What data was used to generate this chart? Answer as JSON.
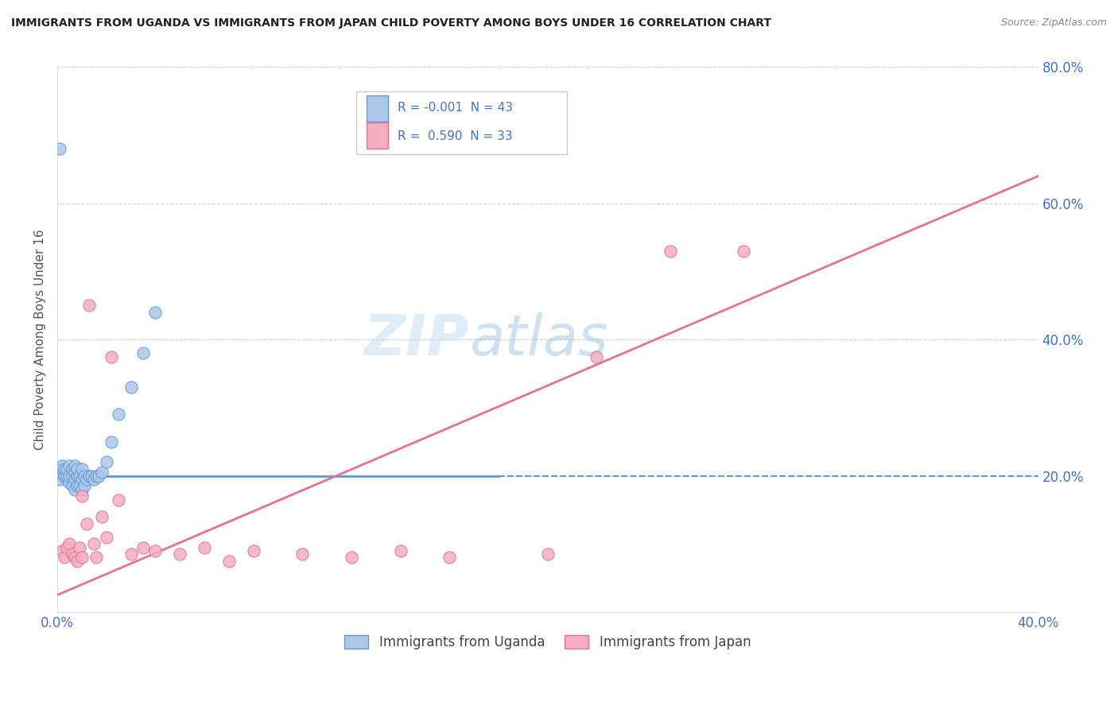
{
  "title": "IMMIGRANTS FROM UGANDA VS IMMIGRANTS FROM JAPAN CHILD POVERTY AMONG BOYS UNDER 16 CORRELATION CHART",
  "source": "Source: ZipAtlas.com",
  "ylabel": "Child Poverty Among Boys Under 16",
  "xlim": [
    0.0,
    0.4
  ],
  "ylim": [
    0.0,
    0.8
  ],
  "yticks": [
    0.0,
    0.2,
    0.4,
    0.6,
    0.8
  ],
  "xticks": [
    0.0,
    0.1,
    0.2,
    0.3,
    0.4
  ],
  "uganda_R": "-0.001",
  "uganda_N": "43",
  "japan_R": "0.590",
  "japan_N": "33",
  "uganda_color": "#aec6e8",
  "japan_color": "#f4aec0",
  "uganda_edge_color": "#5b9bd5",
  "japan_edge_color": "#e87090",
  "legend_label_uganda": "Immigrants from Uganda",
  "legend_label_japan": "Immigrants from Japan",
  "watermark_zip": "ZIP",
  "watermark_atlas": "atlas",
  "uganda_points_x": [
    0.001,
    0.001,
    0.002,
    0.002,
    0.003,
    0.003,
    0.004,
    0.004,
    0.004,
    0.005,
    0.005,
    0.005,
    0.006,
    0.006,
    0.006,
    0.007,
    0.007,
    0.007,
    0.007,
    0.008,
    0.008,
    0.008,
    0.009,
    0.009,
    0.01,
    0.01,
    0.01,
    0.011,
    0.011,
    0.012,
    0.013,
    0.014,
    0.015,
    0.016,
    0.017,
    0.018,
    0.02,
    0.022,
    0.025,
    0.03,
    0.035,
    0.04,
    0.001
  ],
  "uganda_points_y": [
    0.195,
    0.205,
    0.21,
    0.215,
    0.2,
    0.21,
    0.195,
    0.2,
    0.21,
    0.19,
    0.2,
    0.215,
    0.185,
    0.2,
    0.21,
    0.18,
    0.195,
    0.205,
    0.215,
    0.185,
    0.2,
    0.21,
    0.185,
    0.2,
    0.18,
    0.195,
    0.21,
    0.185,
    0.2,
    0.195,
    0.2,
    0.2,
    0.195,
    0.2,
    0.2,
    0.205,
    0.22,
    0.25,
    0.29,
    0.33,
    0.38,
    0.44,
    0.68
  ],
  "japan_points_x": [
    0.002,
    0.003,
    0.004,
    0.005,
    0.006,
    0.007,
    0.008,
    0.009,
    0.01,
    0.01,
    0.012,
    0.013,
    0.015,
    0.016,
    0.018,
    0.02,
    0.022,
    0.025,
    0.03,
    0.035,
    0.04,
    0.05,
    0.06,
    0.07,
    0.08,
    0.1,
    0.12,
    0.14,
    0.16,
    0.2,
    0.22,
    0.25,
    0.28
  ],
  "japan_points_y": [
    0.09,
    0.08,
    0.095,
    0.1,
    0.085,
    0.08,
    0.075,
    0.095,
    0.17,
    0.08,
    0.13,
    0.45,
    0.1,
    0.08,
    0.14,
    0.11,
    0.375,
    0.165,
    0.085,
    0.095,
    0.09,
    0.085,
    0.095,
    0.075,
    0.09,
    0.085,
    0.08,
    0.09,
    0.08,
    0.085,
    0.375,
    0.53,
    0.53
  ],
  "uganda_trend_x": [
    0.0,
    0.18,
    0.4
  ],
  "uganda_trend_y": [
    0.2,
    0.2,
    0.2
  ],
  "uganda_trend_solid_end": 0.18,
  "japan_trend_x": [
    0.0,
    0.4
  ],
  "japan_trend_y": [
    0.025,
    0.64
  ],
  "grid_color": "#d0d0d0",
  "grid_style": "--",
  "title_color": "#222222",
  "tick_label_color": "#4472c4",
  "legend_text_color": "#4472c4",
  "r_text_color": "#e05070",
  "background_color": "#ffffff",
  "legend_box_color": "#e8e8e8",
  "legend_edge_color": "#cccccc"
}
